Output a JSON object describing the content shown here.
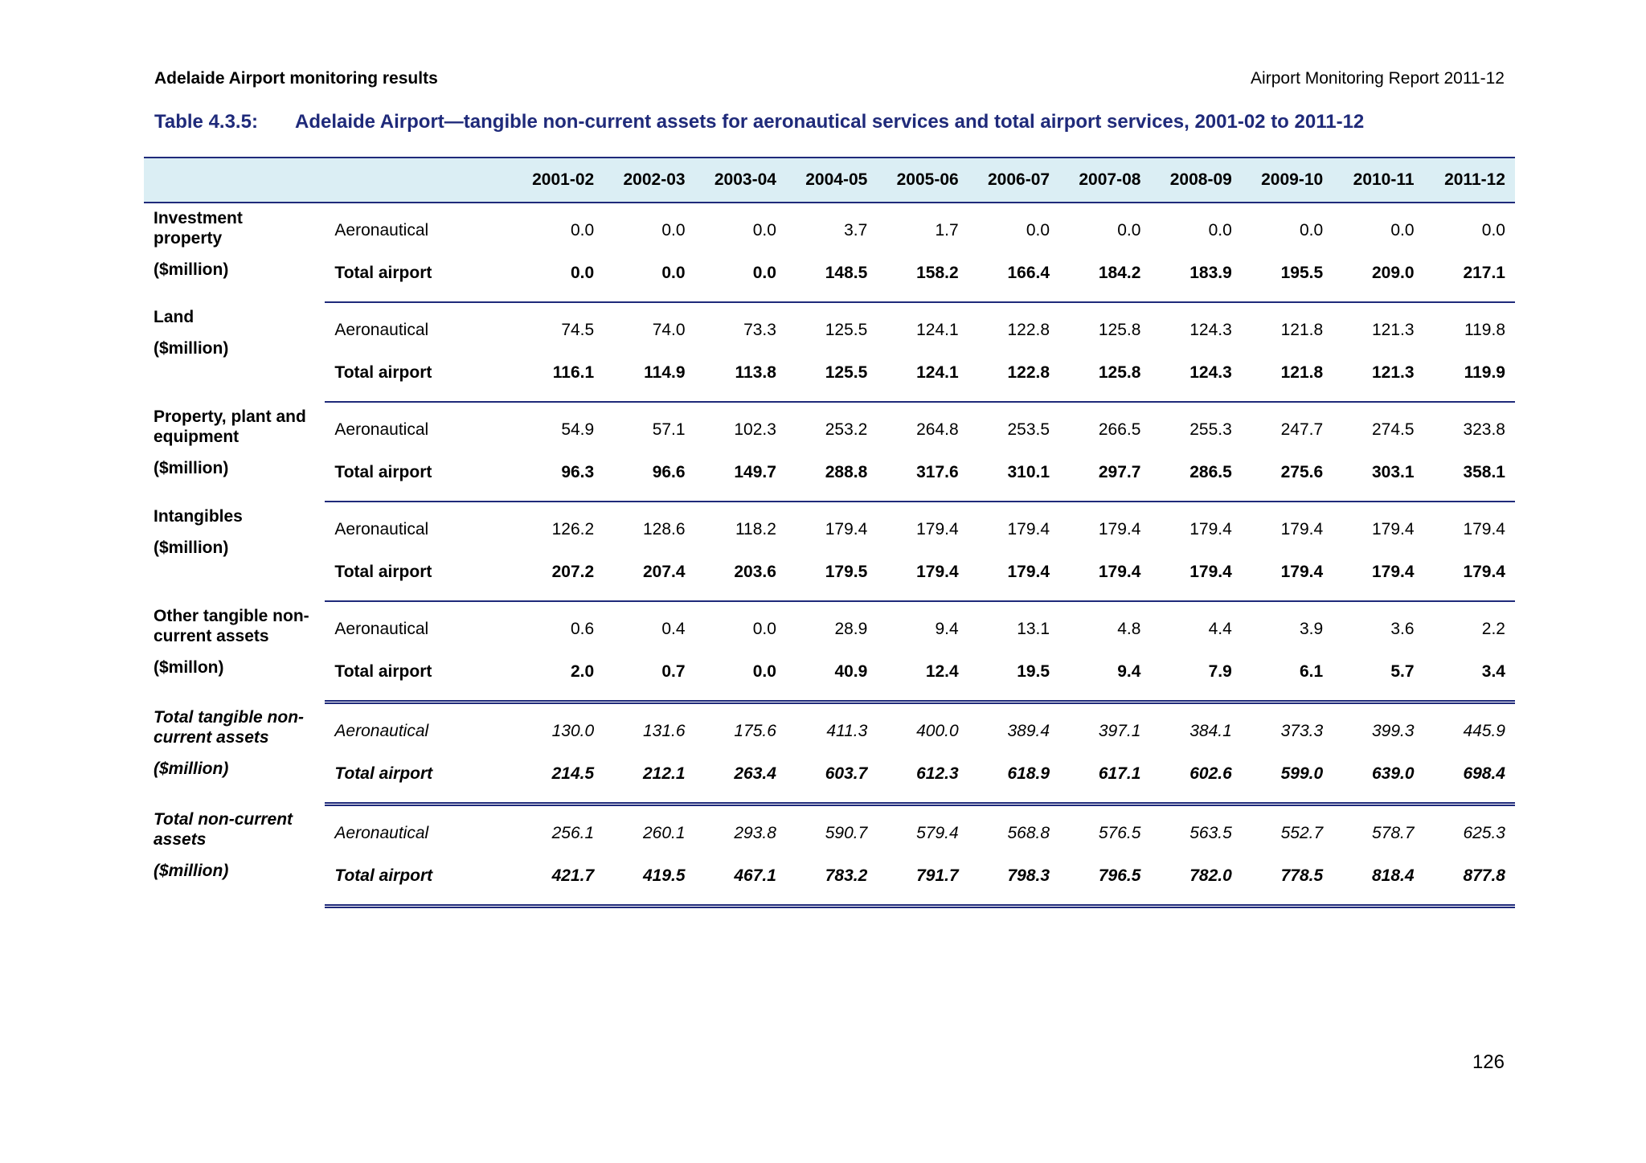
{
  "header": {
    "left": "Adelaide Airport monitoring results",
    "right": "Airport Monitoring Report 2011-12"
  },
  "table": {
    "label": "Table 4.3.5:",
    "title": "Adelaide Airport—tangible non-current assets for aeronautical services and total airport services, 2001-02 to 2011-12",
    "columns": [
      "2001-02",
      "2002-03",
      "2003-04",
      "2004-05",
      "2005-06",
      "2006-07",
      "2007-08",
      "2008-09",
      "2009-10",
      "2010-11",
      "2011-12"
    ],
    "groups": [
      {
        "name": "Investment property",
        "unit": "($million)",
        "rows": [
          {
            "label": "Aeronautical",
            "values": [
              "0.0",
              "0.0",
              "0.0",
              "3.7",
              "1.7",
              "0.0",
              "0.0",
              "0.0",
              "0.0",
              "0.0",
              "0.0"
            ]
          },
          {
            "label": "Total airport",
            "values": [
              "0.0",
              "0.0",
              "0.0",
              "148.5",
              "158.2",
              "166.4",
              "184.2",
              "183.9",
              "195.5",
              "209.0",
              "217.1"
            ]
          }
        ]
      },
      {
        "name": "Land",
        "unit": "($million)",
        "rows": [
          {
            "label": "Aeronautical",
            "values": [
              "74.5",
              "74.0",
              "73.3",
              "125.5",
              "124.1",
              "122.8",
              "125.8",
              "124.3",
              "121.8",
              "121.3",
              "119.8"
            ]
          },
          {
            "label": "Total airport",
            "values": [
              "116.1",
              "114.9",
              "113.8",
              "125.5",
              "124.1",
              "122.8",
              "125.8",
              "124.3",
              "121.8",
              "121.3",
              "119.9"
            ]
          }
        ]
      },
      {
        "name": "Property, plant and equipment",
        "unit": "($million)",
        "rows": [
          {
            "label": "Aeronautical",
            "values": [
              "54.9",
              "57.1",
              "102.3",
              "253.2",
              "264.8",
              "253.5",
              "266.5",
              "255.3",
              "247.7",
              "274.5",
              "323.8"
            ]
          },
          {
            "label": "Total airport",
            "values": [
              "96.3",
              "96.6",
              "149.7",
              "288.8",
              "317.6",
              "310.1",
              "297.7",
              "286.5",
              "275.6",
              "303.1",
              "358.1"
            ]
          }
        ]
      },
      {
        "name": "Intangibles",
        "unit": "($million)",
        "rows": [
          {
            "label": "Aeronautical",
            "values": [
              "126.2",
              "128.6",
              "118.2",
              "179.4",
              "179.4",
              "179.4",
              "179.4",
              "179.4",
              "179.4",
              "179.4",
              "179.4"
            ]
          },
          {
            "label": "Total airport",
            "values": [
              "207.2",
              "207.4",
              "203.6",
              "179.5",
              "179.4",
              "179.4",
              "179.4",
              "179.4",
              "179.4",
              "179.4",
              "179.4"
            ]
          }
        ]
      },
      {
        "name": "Other tangible non-current assets",
        "unit": "($millon)",
        "rows": [
          {
            "label": "Aeronautical",
            "values": [
              "0.6",
              "0.4",
              "0.0",
              "28.9",
              "9.4",
              "13.1",
              "4.8",
              "4.4",
              "3.9",
              "3.6",
              "2.2"
            ]
          },
          {
            "label": "Total airport",
            "values": [
              "2.0",
              "0.7",
              "0.0",
              "40.9",
              "12.4",
              "19.5",
              "9.4",
              "7.9",
              "6.1",
              "5.7",
              "3.4"
            ]
          }
        ]
      },
      {
        "name": "Total tangible non-current assets",
        "unit": "($million)",
        "rows": [
          {
            "label": "Aeronautical",
            "values": [
              "130.0",
              "131.6",
              "175.6",
              "411.3",
              "400.0",
              "389.4",
              "397.1",
              "384.1",
              "373.3",
              "399.3",
              "445.9"
            ]
          },
          {
            "label": "Total airport",
            "values": [
              "214.5",
              "212.1",
              "263.4",
              "603.7",
              "612.3",
              "618.9",
              "617.1",
              "602.6",
              "599.0",
              "639.0",
              "698.4"
            ]
          }
        ]
      },
      {
        "name": "Total non-current assets",
        "unit": "($million)",
        "rows": [
          {
            "label": "Aeronautical",
            "values": [
              "256.1",
              "260.1",
              "293.8",
              "590.7",
              "579.4",
              "568.8",
              "576.5",
              "563.5",
              "552.7",
              "578.7",
              "625.3"
            ]
          },
          {
            "label": "Total airport",
            "values": [
              "421.7",
              "419.5",
              "467.1",
              "783.2",
              "791.7",
              "798.3",
              "796.5",
              "782.0",
              "778.5",
              "818.4",
              "877.8"
            ]
          }
        ]
      }
    ]
  },
  "page_number": "126"
}
